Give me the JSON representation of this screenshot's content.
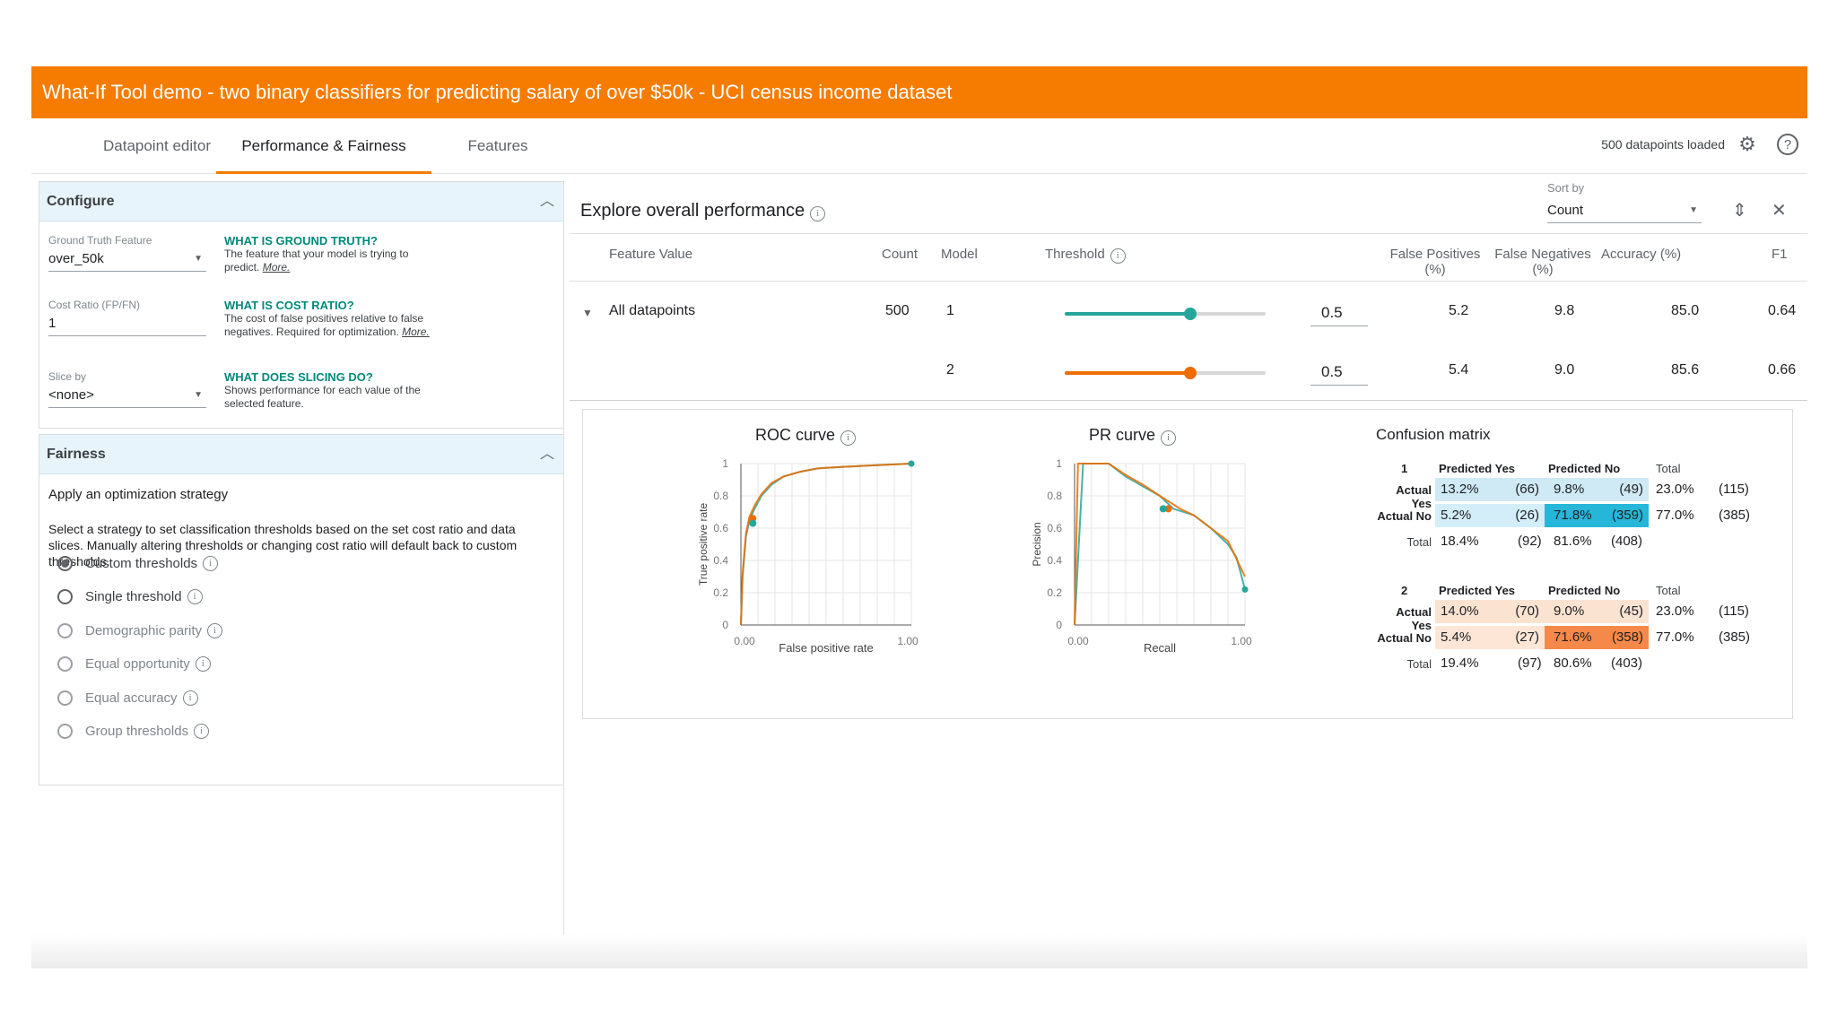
{
  "header": {
    "title": "What-If Tool demo - two binary classifiers for predicting salary of over $50k - UCI census income dataset"
  },
  "tabs": [
    "Datapoint editor",
    "Performance & Fairness",
    "Features"
  ],
  "status": {
    "loaded": "500 datapoints loaded"
  },
  "configure": {
    "title": "Configure",
    "gt_label": "Ground Truth Feature",
    "gt_value": "over_50k",
    "gt_hint_title": "WHAT IS GROUND TRUTH?",
    "gt_hint_text": "The feature that your model is trying to predict.",
    "cost_label": "Cost Ratio (FP/FN)",
    "cost_value": "1",
    "cost_hint_title": "WHAT IS COST RATIO?",
    "cost_hint_text": "The cost of false positives relative to false negatives. Required for optimization.",
    "slice_label": "Slice by",
    "slice_value": "<none>",
    "slice_hint_title": "WHAT DOES SLICING DO?",
    "slice_hint_text": "Shows performance for each value of the selected feature.",
    "more": "More."
  },
  "fairness": {
    "title": "Fairness",
    "apply": "Apply an optimization strategy",
    "desc": "Select a strategy to set classification thresholds based on the set cost ratio and data slices. Manually altering thresholds or changing cost ratio will default back to custom thresholds.",
    "options": [
      "Custom thresholds",
      "Single threshold",
      "Demographic parity",
      "Equal opportunity",
      "Equal accuracy",
      "Group thresholds"
    ],
    "selected": 0
  },
  "perf": {
    "title": "Explore overall performance",
    "sort_label": "Sort by",
    "sort_value": "Count",
    "cols": {
      "feature": "Feature Value",
      "count": "Count",
      "model": "Model",
      "threshold": "Threshold",
      "fp": "False Positives (%)",
      "fn": "False Negatives (%)",
      "acc": "Accuracy (%)",
      "f1": "F1"
    },
    "row_label": "All datapoints",
    "row_count": "500",
    "models": [
      {
        "model": "1",
        "threshold": "0.5",
        "threshold_value": 0.5,
        "fp": "5.2",
        "fn": "9.8",
        "acc": "85.0",
        "f1": "0.64",
        "color": "#26a69a"
      },
      {
        "model": "2",
        "threshold": "0.5",
        "threshold_value": 0.5,
        "fp": "5.4",
        "fn": "9.0",
        "acc": "85.6",
        "f1": "0.66",
        "color": "#ef6c00"
      }
    ]
  },
  "roc": {
    "title": "ROC curve",
    "xlabel": "False positive rate",
    "ylabel": "True positive rate",
    "yticks": [
      "1",
      "0.8",
      "0.6",
      "0.4",
      "0.2",
      "0"
    ],
    "xticks": [
      "0.00",
      "1.00"
    ]
  },
  "pr": {
    "title": "PR curve",
    "xlabel": "Recall",
    "ylabel": "Precision",
    "yticks": [
      "1",
      "0.8",
      "0.6",
      "0.4",
      "0.2",
      "0"
    ],
    "xticks": [
      "0.00",
      "1.00"
    ]
  },
  "chart_data": [
    {
      "type": "line",
      "title": "ROC curve",
      "xlabel": "False positive rate",
      "ylabel": "True positive rate",
      "xlim": [
        0,
        1
      ],
      "ylim": [
        0,
        1
      ],
      "series": [
        {
          "x": [
            0,
            0.01,
            0.03,
            0.05,
            0.08,
            0.12,
            0.18,
            0.25,
            0.35,
            0.45,
            0.6,
            0.8,
            1.0
          ],
          "y": [
            0,
            0.3,
            0.55,
            0.65,
            0.72,
            0.8,
            0.87,
            0.92,
            0.95,
            0.97,
            0.98,
            0.99,
            1.0
          ]
        },
        {
          "x": [
            0,
            0.01,
            0.03,
            0.05,
            0.08,
            0.12,
            0.18,
            0.25,
            0.35,
            0.45,
            0.6,
            0.8,
            1.0
          ],
          "y": [
            0,
            0.32,
            0.57,
            0.67,
            0.74,
            0.81,
            0.88,
            0.92,
            0.95,
            0.97,
            0.98,
            0.99,
            1.0
          ]
        }
      ]
    },
    {
      "type": "line",
      "title": "PR curve",
      "xlabel": "Recall",
      "ylabel": "Precision",
      "xlim": [
        0,
        1
      ],
      "ylim": [
        0,
        1
      ],
      "series": [
        {
          "x": [
            0,
            0.05,
            0.1,
            0.2,
            0.3,
            0.4,
            0.5,
            0.58,
            0.7,
            0.8,
            0.9,
            0.95,
            1.0
          ],
          "y": [
            0,
            1.0,
            1.0,
            1.0,
            0.92,
            0.86,
            0.8,
            0.72,
            0.68,
            0.6,
            0.5,
            0.42,
            0.22
          ]
        },
        {
          "x": [
            0,
            0.02,
            0.05,
            0.1,
            0.2,
            0.3,
            0.4,
            0.5,
            0.62,
            0.7,
            0.8,
            0.9,
            1.0
          ],
          "y": [
            0,
            1.0,
            1.0,
            1.0,
            1.0,
            0.93,
            0.87,
            0.8,
            0.72,
            0.68,
            0.6,
            0.52,
            0.3
          ]
        }
      ]
    }
  ],
  "confusion": {
    "title": "Confusion matrix",
    "headers": {
      "py": "Predicted Yes",
      "pn": "Predicted No",
      "total": "Total",
      "ay": "Actual Yes",
      "an": "Actual No"
    },
    "models": [
      {
        "id": "1",
        "ay": {
          "py": "13.2%",
          "pyc": "(66)",
          "pn": "9.8%",
          "pnc": "(49)",
          "t": "23.0%",
          "tc": "(115)"
        },
        "an": {
          "py": "5.2%",
          "pyc": "(26)",
          "pn": "71.8%",
          "pnc": "(359)",
          "t": "77.0%",
          "tc": "(385)"
        },
        "tot": {
          "py": "18.4%",
          "pyc": "(92)",
          "pn": "81.6%",
          "pnc": "(408)"
        },
        "colors": [
          "#cfe9f5",
          "#cfe9f5",
          "#d3eef9",
          "#26b6d8"
        ]
      },
      {
        "id": "2",
        "ay": {
          "py": "14.0%",
          "pyc": "(70)",
          "pn": "9.0%",
          "pnc": "(45)",
          "t": "23.0%",
          "tc": "(115)"
        },
        "an": {
          "py": "5.4%",
          "pyc": "(27)",
          "pn": "71.6%",
          "pnc": "(358)",
          "t": "77.0%",
          "tc": "(385)"
        },
        "tot": {
          "py": "19.4%",
          "pyc": "(97)",
          "pn": "80.6%",
          "pnc": "(403)"
        },
        "colors": [
          "#fbe3d2",
          "#fbe3d2",
          "#fde6d6",
          "#f5894a"
        ]
      }
    ]
  }
}
